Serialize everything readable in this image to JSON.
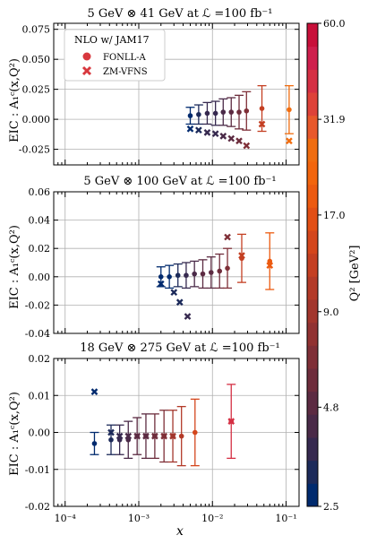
{
  "colors": {
    "cbar": [
      "#002a6e",
      "#1c2a5a",
      "#36294f",
      "#4a2a48",
      "#5c2b42",
      "#6e2d3c",
      "#7f2f37",
      "#913232",
      "#a2362d",
      "#b33a28",
      "#c43f22",
      "#d4461c",
      "#e24f15",
      "#ec5a10",
      "#f2650d",
      "#f06d10",
      "#e8582b",
      "#de4239",
      "#d53044",
      "#cf1f4d",
      "#c8103a"
    ],
    "fonll": "#d8383e",
    "zm": "#d8383e"
  },
  "x_label": "x",
  "colorbar_label": "Q² [GeV²]",
  "colorbar_ticks": [
    "60.0",
    "31.9",
    "17.0",
    "9.0",
    "4.8",
    "2.5"
  ],
  "x_ticks": [
    "10⁻⁴",
    "10⁻³",
    "10⁻²",
    "10⁻¹"
  ],
  "legend": {
    "title": "NLO w/ JAM17",
    "fonll": "FONLL-A",
    "zm": "ZM-VFNS"
  },
  "chart_data": [
    {
      "type": "scatter",
      "title": "5 GeV ⊗ 41 GeV at ℒ =100 fb⁻¹",
      "ylabel": "EIC : A₁ᶜ(x,Q²)",
      "yticks": [
        "0.075",
        "0.050",
        "0.025",
        "0.000",
        "-0.025"
      ],
      "ylim": [
        -0.038,
        0.08
      ],
      "xlim": [
        7e-05,
        0.15
      ],
      "series": [
        {
          "name": "FONLL-A",
          "x": [
            0.005,
            0.0065,
            0.0085,
            0.011,
            0.014,
            0.018,
            0.023,
            0.029,
            0.047,
            0.11
          ],
          "y": [
            0.003,
            0.004,
            0.005,
            0.005,
            0.006,
            0.006,
            0.006,
            0.007,
            0.009,
            0.008
          ],
          "err": [
            0.007,
            0.008,
            0.009,
            0.01,
            0.011,
            0.012,
            0.014,
            0.016,
            0.019,
            0.02
          ],
          "q2": [
            2.6,
            3.0,
            3.4,
            3.8,
            4.3,
            4.9,
            5.6,
            6.5,
            13,
            25
          ]
        },
        {
          "name": "ZM-VFNS",
          "x": [
            0.005,
            0.0065,
            0.0085,
            0.011,
            0.014,
            0.018,
            0.023,
            0.029,
            0.047,
            0.11
          ],
          "y": [
            -0.008,
            -0.009,
            -0.011,
            -0.012,
            -0.014,
            -0.016,
            -0.018,
            -0.022,
            -0.004,
            -0.018
          ],
          "q2": [
            2.6,
            3.0,
            3.4,
            3.8,
            4.3,
            4.9,
            5.6,
            6.5,
            13,
            25
          ]
        }
      ]
    },
    {
      "type": "scatter",
      "title": "5 GeV ⊗ 100 GeV at ℒ =100 fb⁻¹",
      "ylabel": "EIC : A₁ᶜ(x,Q²)",
      "yticks": [
        "0.06",
        "0.04",
        "0.02",
        "0.00",
        "-0.02",
        "-0.04"
      ],
      "ylim": [
        -0.04,
        0.06
      ],
      "xlim": [
        7e-05,
        0.15
      ],
      "series": [
        {
          "name": "FONLL-A",
          "x": [
            0.002,
            0.0026,
            0.0034,
            0.0044,
            0.0057,
            0.0074,
            0.0096,
            0.0125,
            0.016,
            0.025,
            0.06
          ],
          "y": [
            0.0,
            0.0,
            0.001,
            0.001,
            0.002,
            0.002,
            0.003,
            0.004,
            0.006,
            0.013,
            0.011
          ],
          "err": [
            0.007,
            0.008,
            0.008,
            0.009,
            0.009,
            0.01,
            0.011,
            0.012,
            0.014,
            0.017,
            0.02
          ],
          "q2": [
            2.6,
            2.9,
            3.3,
            3.7,
            4.1,
            4.6,
            5.2,
            6.0,
            7.0,
            13,
            19
          ]
        },
        {
          "name": "ZM-VFNS",
          "x": [
            0.002,
            0.003,
            0.0036,
            0.0046,
            0.016,
            0.025,
            0.06
          ],
          "y": [
            -0.005,
            -0.011,
            -0.018,
            -0.028,
            0.028,
            0.015,
            0.008
          ],
          "q2": [
            2.6,
            3.0,
            3.3,
            3.8,
            7.0,
            13,
            19
          ]
        }
      ]
    },
    {
      "type": "scatter",
      "title": "18 GeV ⊗ 275 GeV at ℒ =100 fb⁻¹",
      "ylabel": "EIC : A₁ᶜ(x,Q²)",
      "yticks": [
        "0.02",
        "0.01",
        "0.00",
        "-0.01",
        "-0.02"
      ],
      "ylim": [
        -0.02,
        0.02
      ],
      "xlim": [
        7e-05,
        0.15
      ],
      "series": [
        {
          "name": "FONLL-A",
          "x": [
            0.00025,
            0.00042,
            0.00055,
            0.00072,
            0.00095,
            0.00125,
            0.00165,
            0.0022,
            0.0029,
            0.0038,
            0.0058,
            0.018
          ],
          "y": [
            -0.003,
            -0.002,
            -0.002,
            -0.002,
            -0.001,
            -0.001,
            -0.001,
            -0.001,
            -0.001,
            -0.001,
            0.0,
            0.003
          ],
          "err": [
            0.003,
            0.004,
            0.004,
            0.005,
            0.005,
            0.006,
            0.006,
            0.007,
            0.007,
            0.008,
            0.009,
            0.01
          ],
          "q2": [
            2.6,
            3.3,
            3.7,
            4.1,
            4.6,
            5.2,
            6.0,
            7.0,
            8.5,
            11,
            14,
            40
          ]
        },
        {
          "name": "ZM-VFNS",
          "x": [
            0.00025,
            0.00042,
            0.00055,
            0.00072,
            0.00095,
            0.00125,
            0.00165,
            0.0022,
            0.0029,
            0.018
          ],
          "y": [
            0.011,
            0.0,
            -0.001,
            -0.001,
            -0.001,
            -0.001,
            -0.001,
            -0.001,
            -0.001,
            0.003
          ],
          "q2": [
            2.6,
            3.3,
            3.7,
            4.1,
            4.6,
            5.2,
            6.0,
            7.0,
            8.5,
            40
          ]
        }
      ]
    }
  ]
}
